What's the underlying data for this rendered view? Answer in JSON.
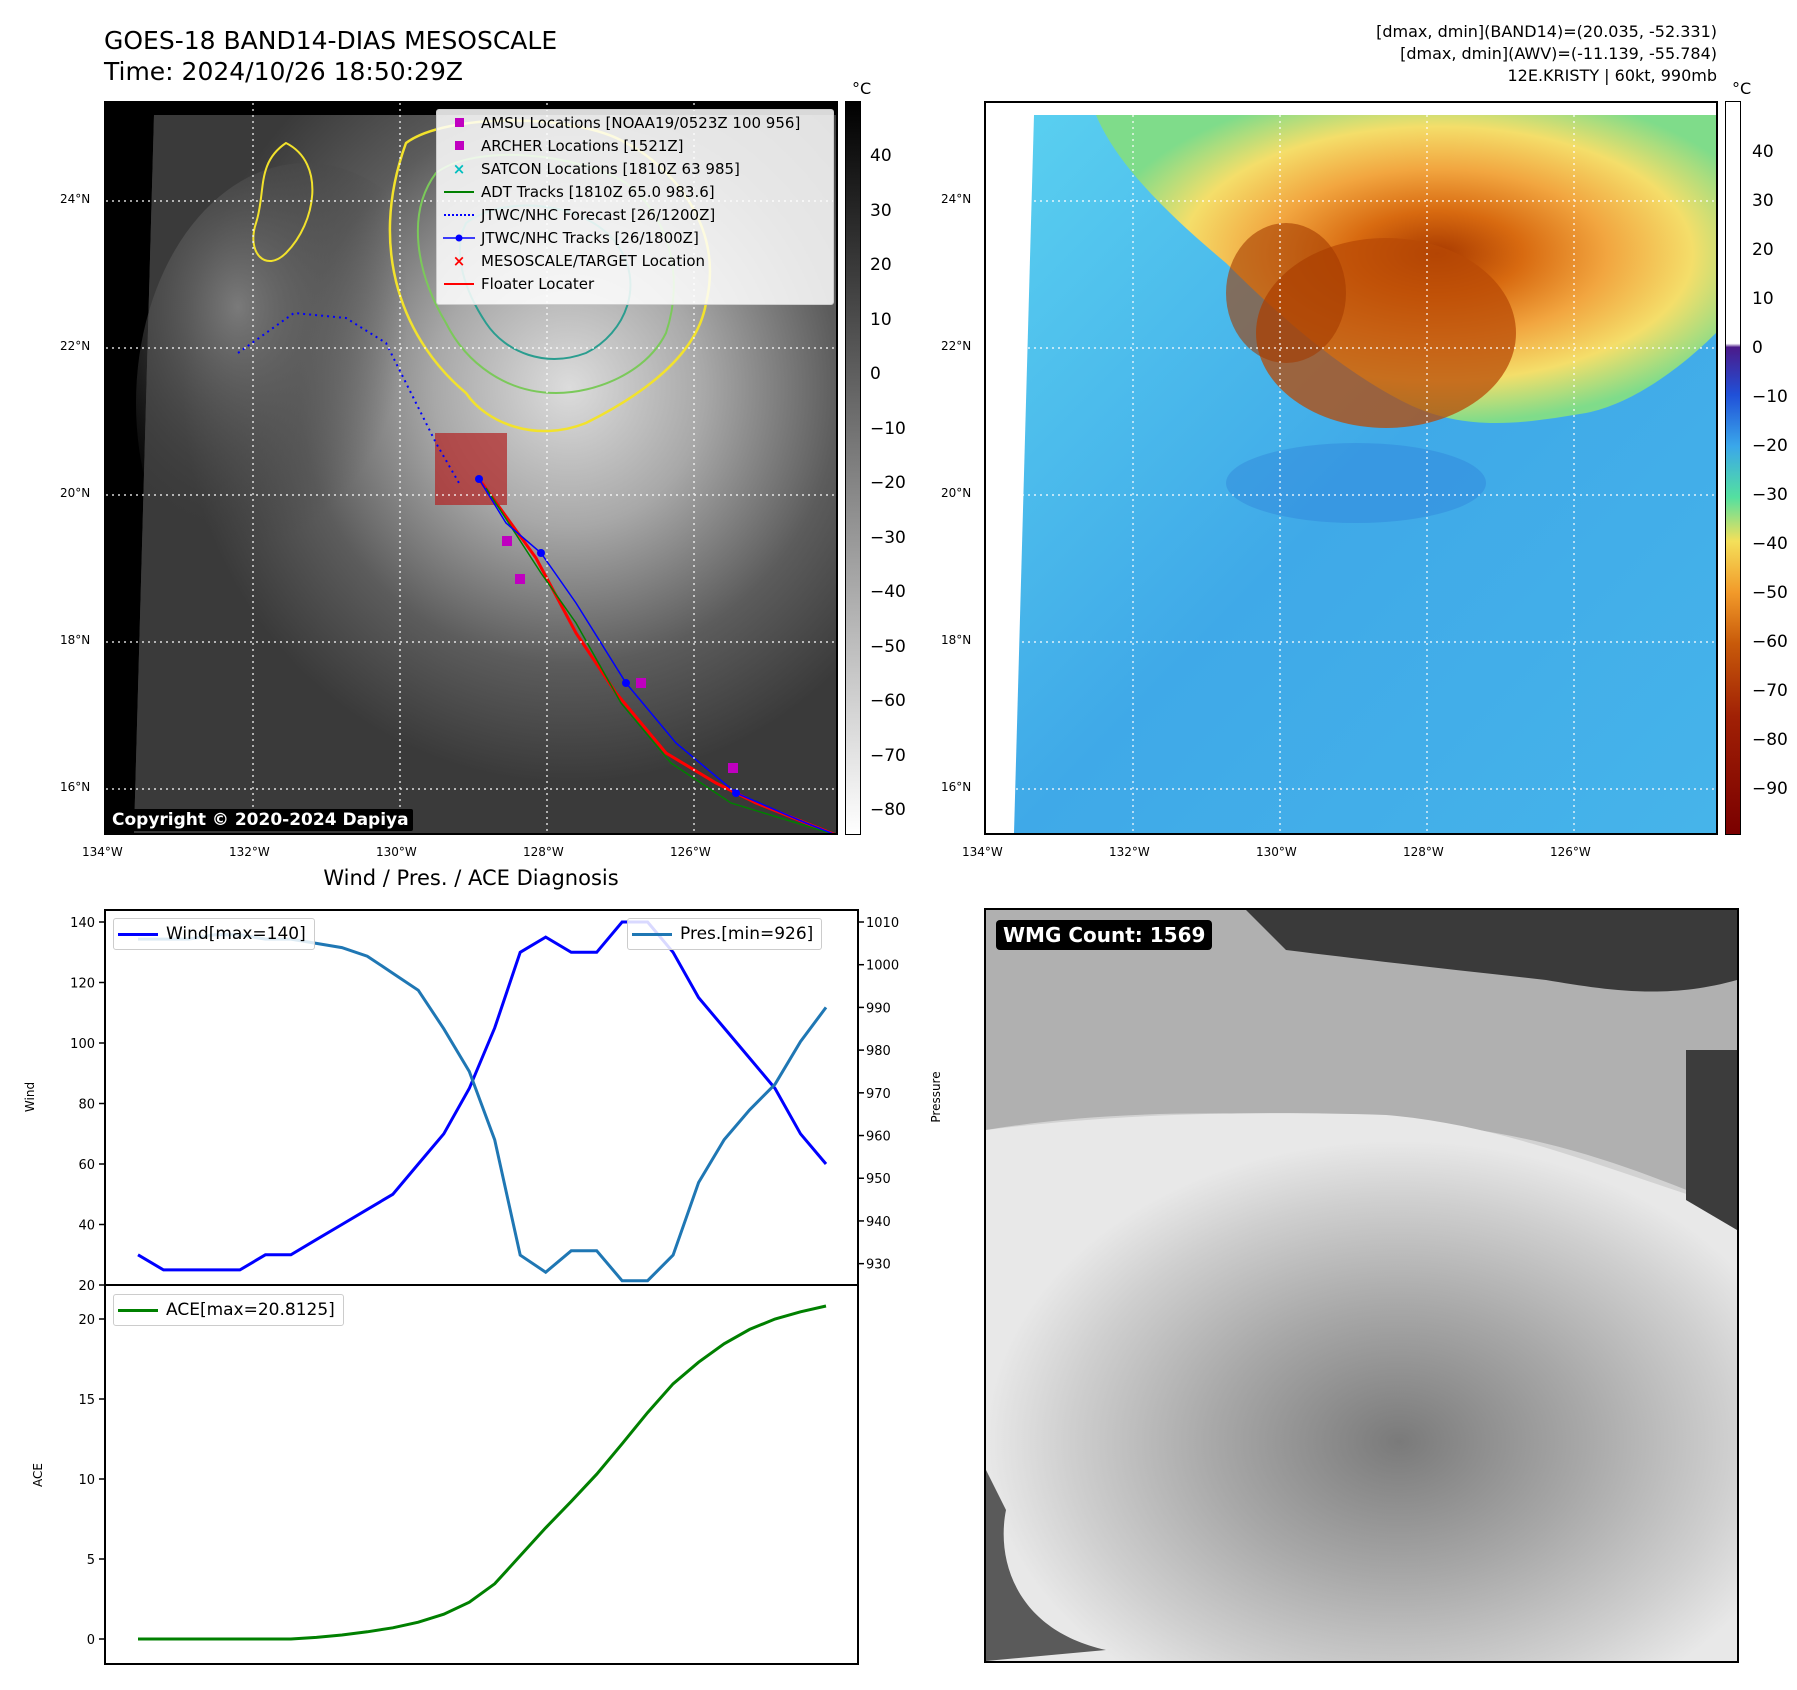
{
  "header": {
    "title_line1": "GOES-18 BAND14-DIAS MESOSCALE",
    "title_line2": "Time: 2024/10/26 18:50:29Z",
    "right_line1": "[dmax, dmin](BAND14)=(20.035, -52.331)",
    "right_line2": "[dmax, dmin](AWV)=(-11.139, -55.784)",
    "right_line3": "12E.KRISTY | 60kt, 990mb"
  },
  "map_axes": {
    "lat_labels": [
      "24°N",
      "22°N",
      "20°N",
      "18°N",
      "16°N"
    ],
    "lon_labels": [
      "134°W",
      "132°W",
      "130°W",
      "128°W",
      "126°W"
    ]
  },
  "colorbar_gray": {
    "unit": "°C",
    "ticks": [
      "40",
      "30",
      "20",
      "10",
      "0",
      "−10",
      "−20",
      "−30",
      "−40",
      "−50",
      "−60",
      "−70",
      "−80"
    ]
  },
  "colorbar_color": {
    "unit": "°C",
    "ticks": [
      "40",
      "30",
      "20",
      "10",
      "0",
      "−10",
      "−20",
      "−30",
      "−40",
      "−50",
      "−60",
      "−70",
      "−80",
      "−90"
    ]
  },
  "legend_map": {
    "items": [
      {
        "label": "AMSU Locations [NOAA19/0523Z 100 956]",
        "symbol": "square",
        "color": "#c000c0"
      },
      {
        "label": "ARCHER Locations [1521Z]",
        "symbol": "square",
        "color": "#c000c0"
      },
      {
        "label": "SATCON Locations [1810Z 63 985]",
        "symbol": "x",
        "color": "#00bfbf"
      },
      {
        "label": "ADT Tracks [1810Z 65.0 983.6]",
        "symbol": "line",
        "color": "#008000"
      },
      {
        "label": "JTWC/NHC Forecast [26/1200Z]",
        "symbol": "dotted",
        "color": "#0000ff"
      },
      {
        "label": "JTWC/NHC Tracks [26/1800Z]",
        "symbol": "dotline",
        "color": "#0000ff"
      },
      {
        "label": "MESOSCALE/TARGET Location",
        "symbol": "x",
        "color": "#ff0000"
      },
      {
        "label": "Floater Locater",
        "symbol": "line",
        "color": "#ff0000"
      }
    ]
  },
  "copyright": "Copyright © 2020-2024 Dapiya",
  "diag_title": "Wind / Pres. / ACE Diagnosis",
  "wmg_label": "WMG Count: 1569",
  "colors": {
    "wind": "#0000ff",
    "pressure": "#1f77b4",
    "ace": "#008000",
    "track_red": "#ff0000"
  },
  "chart_data": [
    {
      "type": "line",
      "title": "Wind / Pres. / ACE Diagnosis",
      "ylabel": "Wind",
      "y2label": "Pressure",
      "ylim": [
        20,
        140
      ],
      "y2lim": [
        925,
        1010
      ],
      "series": [
        {
          "name": "Wind[max=140]",
          "axis": "left",
          "values": [
            30,
            25,
            25,
            25,
            25,
            30,
            30,
            35,
            40,
            45,
            50,
            60,
            70,
            85,
            105,
            130,
            135,
            130,
            130,
            140,
            140,
            130,
            115,
            105,
            95,
            85,
            70,
            60
          ]
        },
        {
          "name": "Pres.[min=926]",
          "axis": "right",
          "values": [
            1006,
            1006,
            1006,
            1007,
            1007,
            1006,
            1006,
            1005,
            1004,
            1002,
            998,
            994,
            985,
            975,
            959,
            932,
            928,
            933,
            933,
            926,
            926,
            932,
            949,
            959,
            966,
            972,
            982,
            990
          ]
        }
      ],
      "yticks": [
        "140",
        "120",
        "100",
        "80",
        "60",
        "40",
        "20"
      ],
      "y2ticks": [
        "1010",
        "1000",
        "990",
        "980",
        "970",
        "960",
        "950",
        "940",
        "930"
      ]
    },
    {
      "type": "line",
      "ylabel": "ACE",
      "ylim": [
        -1,
        21.5
      ],
      "series": [
        {
          "name": "ACE[max=20.8125]",
          "values": [
            0,
            0,
            0,
            0,
            0,
            0,
            0,
            0.1,
            0.25,
            0.45,
            0.7,
            1.05,
            1.55,
            2.3,
            3.45,
            5.2,
            6.95,
            8.6,
            10.3,
            12.2,
            14.15,
            15.95,
            17.3,
            18.45,
            19.35,
            20.0,
            20.45,
            20.8125
          ]
        }
      ],
      "yticks": [
        "20",
        "15",
        "10",
        "5",
        "0"
      ]
    }
  ]
}
